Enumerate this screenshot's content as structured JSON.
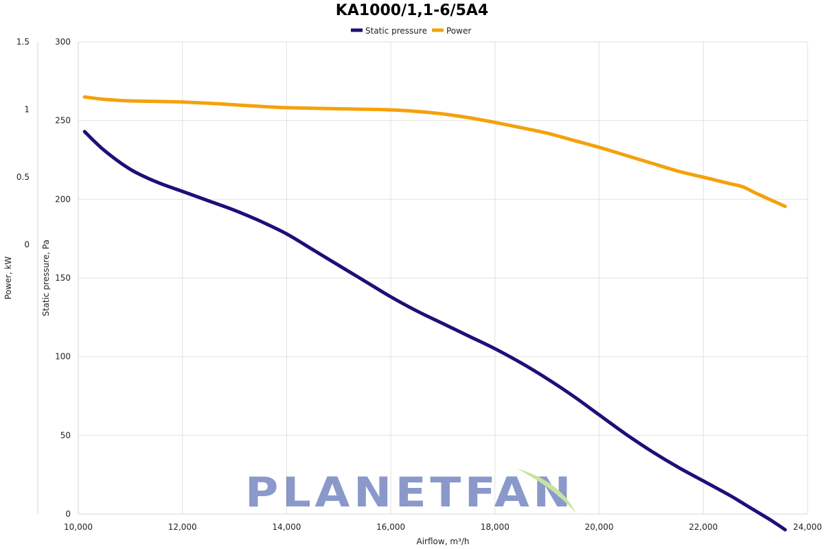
{
  "chart_data": {
    "type": "line",
    "title": "KA1000/1,1-6/5A4",
    "xlabel": "Airflow, m³/h",
    "ylabel_left": "Power, kW",
    "ylabel_right": "Static pressure, Pa",
    "xlim": [
      10000,
      24000
    ],
    "x_ticks": [
      10000,
      12000,
      14000,
      16000,
      18000,
      20000,
      22000,
      24000
    ],
    "x_tick_labels": [
      "10,000",
      "12,000",
      "14,000",
      "16,000",
      "18,000",
      "20,000",
      "22,000",
      "24,000"
    ],
    "power_axis": {
      "ticks": [
        1.5,
        1,
        0.5,
        0
      ],
      "tick_labels": [
        "1.5",
        "1",
        "0.5",
        "0"
      ]
    },
    "pressure_axis": {
      "ylim": [
        0,
        300
      ],
      "ticks": [
        0,
        50,
        100,
        150,
        200,
        250,
        300
      ],
      "tick_labels": [
        "0",
        "50",
        "100",
        "150",
        "200",
        "250",
        "300"
      ]
    },
    "grid": true,
    "legend_position": "top-center",
    "series": [
      {
        "name": "Static pressure",
        "color": "#1e0f78",
        "axis": "pressure",
        "x": [
          10120,
          10500,
          11000,
          11500,
          12000,
          12500,
          13000,
          13500,
          14000,
          14500,
          15000,
          15500,
          16000,
          16500,
          17000,
          17500,
          18000,
          18500,
          19000,
          19500,
          20000,
          20500,
          21000,
          21500,
          22000,
          22500,
          22750,
          23000,
          23300,
          23570
        ],
        "values": [
          243,
          231,
          219,
          211,
          205,
          199,
          193,
          186,
          178,
          168,
          158,
          148,
          138,
          129,
          121,
          113,
          105,
          96,
          86,
          75,
          63,
          51,
          40,
          30,
          21,
          12,
          7,
          2,
          -4,
          -10
        ]
      },
      {
        "name": "Power",
        "color": "#f5a10a",
        "axis": "pressure",
        "x": [
          10120,
          10500,
          11000,
          11500,
          12000,
          12500,
          13000,
          13500,
          14000,
          14500,
          15000,
          15500,
          16000,
          16500,
          17000,
          17500,
          18000,
          18500,
          19000,
          19500,
          20000,
          20500,
          21000,
          21500,
          22000,
          22500,
          22750,
          23000,
          23300,
          23570
        ],
        "values": [
          265,
          263.5,
          262.5,
          262.2,
          261.8,
          261,
          260,
          259,
          258.2,
          257.8,
          257.5,
          257.2,
          256.8,
          255.8,
          254.2,
          251.8,
          248.8,
          245.5,
          242,
          237.5,
          233,
          228,
          223,
          218,
          214,
          210,
          208,
          204,
          199.5,
          195.5
        ]
      }
    ],
    "watermark": "PLANETFAN"
  }
}
